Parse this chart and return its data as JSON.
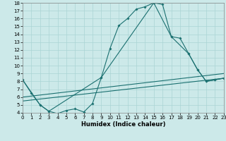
{
  "xlabel": "Humidex (Indice chaleur)",
  "bg_color": "#cce9e9",
  "grid_color": "#aad4d4",
  "line_color": "#1a7070",
  "xlim": [
    0,
    23
  ],
  "ylim": [
    4,
    18
  ],
  "xticks": [
    0,
    1,
    2,
    3,
    4,
    5,
    6,
    7,
    8,
    9,
    10,
    11,
    12,
    13,
    14,
    15,
    16,
    17,
    18,
    19,
    20,
    21,
    22,
    23
  ],
  "yticks": [
    4,
    5,
    6,
    7,
    8,
    9,
    10,
    11,
    12,
    13,
    14,
    15,
    16,
    17,
    18
  ],
  "curve1_x": [
    0,
    1,
    2,
    3,
    4,
    5,
    6,
    7,
    8,
    9,
    10,
    11,
    12,
    13,
    14,
    15,
    16,
    17,
    18,
    19,
    20,
    21,
    22,
    23
  ],
  "curve1_y": [
    8.2,
    6.5,
    5.0,
    4.2,
    3.9,
    4.3,
    4.5,
    4.1,
    5.2,
    8.5,
    12.2,
    15.1,
    16.0,
    17.2,
    17.5,
    18.0,
    17.8,
    13.7,
    13.5,
    11.5,
    9.5,
    8.0,
    8.2,
    8.4
  ],
  "curve2_x": [
    0,
    2,
    3,
    9,
    15,
    17,
    19,
    20,
    21,
    22,
    23
  ],
  "curve2_y": [
    8.2,
    5.0,
    4.2,
    8.5,
    18.0,
    13.7,
    11.5,
    9.5,
    8.0,
    8.2,
    8.4
  ],
  "line3_x": [
    0,
    23
  ],
  "line3_y": [
    5.5,
    8.4
  ],
  "line4_x": [
    0,
    23
  ],
  "line4_y": [
    6.0,
    9.0
  ]
}
